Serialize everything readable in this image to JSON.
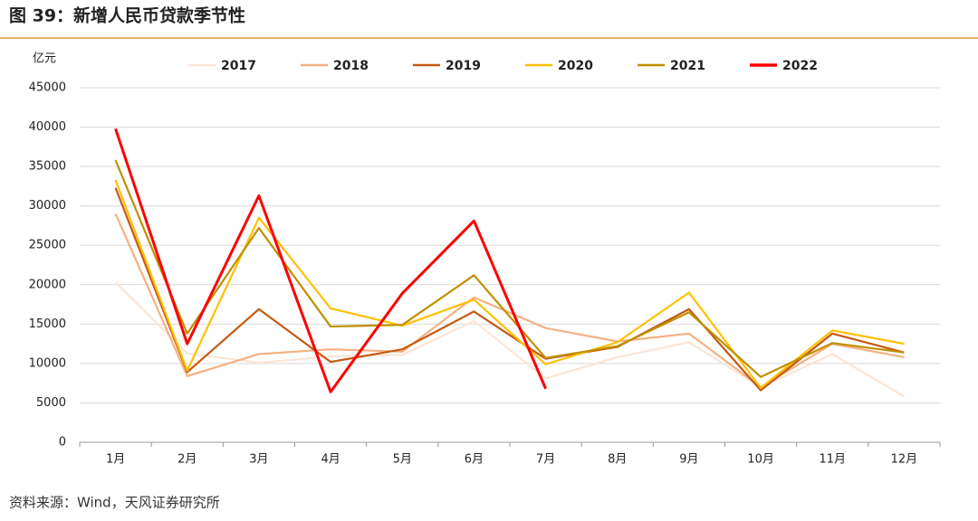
{
  "chart_data": {
    "type": "line",
    "title": "图 39：新增人民币贷款季节性",
    "y_label": "亿元",
    "source": "资料来源：Wind，天风证券研究所",
    "categories": [
      "1月",
      "2月",
      "3月",
      "4月",
      "5月",
      "6月",
      "7月",
      "8月",
      "9月",
      "10月",
      "11月",
      "12月"
    ],
    "ylim": [
      0,
      45000
    ],
    "yticks": [
      0,
      5000,
      10000,
      15000,
      20000,
      25000,
      30000,
      35000,
      40000,
      45000
    ],
    "grid": true,
    "legend": "top",
    "series": [
      {
        "name": "2017",
        "color": "#fbe5d6",
        "values": [
          20300,
          11300,
          10100,
          10900,
          11100,
          15400,
          8100,
          10800,
          12700,
          7000,
          11200,
          5800
        ]
      },
      {
        "name": "2018",
        "color": "#f4b183",
        "values": [
          29000,
          8400,
          11200,
          11800,
          11500,
          18400,
          14500,
          12800,
          13800,
          7000,
          12500,
          10800
        ]
      },
      {
        "name": "2019",
        "color": "#c55a11",
        "values": [
          32300,
          8900,
          16900,
          10200,
          11800,
          16600,
          10600,
          12100,
          16900,
          6600,
          13800,
          11400
        ]
      },
      {
        "name": "2020",
        "color": "#ffc000",
        "values": [
          33300,
          9100,
          28500,
          17000,
          14800,
          18100,
          9900,
          12700,
          19000,
          6900,
          14200,
          12500
        ]
      },
      {
        "name": "2021",
        "color": "#bf9000",
        "values": [
          35800,
          13800,
          27200,
          14700,
          14900,
          21200,
          10700,
          12200,
          16500,
          8300,
          12600,
          11400
        ]
      },
      {
        "name": "2022",
        "color": "#ff0000",
        "values": [
          39800,
          12500,
          31300,
          6400,
          18900,
          28100,
          6800,
          null,
          null,
          null,
          null,
          null
        ]
      }
    ]
  }
}
